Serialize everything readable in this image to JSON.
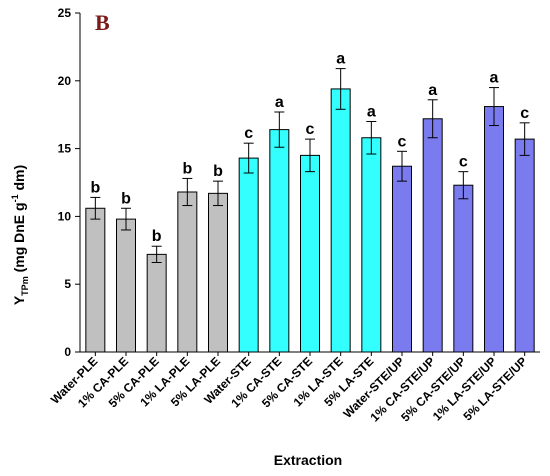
{
  "panel_label": "B",
  "chart_data": {
    "type": "bar",
    "xlabel": "Extraction",
    "ylabel_main": "Y",
    "ylabel_sub": "TPm",
    "ylabel_rest": " (mg DnE g",
    "ylabel_sup": "-1",
    "ylabel_end": " dm)",
    "ylim": [
      0,
      25
    ],
    "yticks": [
      0,
      5,
      10,
      15,
      20,
      25
    ],
    "grid": false,
    "categories": [
      "Water-PLE",
      "1% CA-PLE",
      "5% CA-PLE",
      "1% LA-PLE",
      "5% LA-PLE",
      "Water-STE",
      "1% CA-STE",
      "5% CA-STE",
      "1% LA-STE",
      "5% LA-STE",
      "Water-STE/UP",
      "1% CA-STE/UP",
      "5% CA-STE/UP",
      "1% LA-STE/UP",
      "5% LA-STE/UP"
    ],
    "values": [
      10.6,
      9.8,
      7.2,
      11.8,
      11.7,
      14.3,
      16.4,
      14.5,
      19.4,
      15.8,
      13.7,
      17.2,
      12.3,
      18.1,
      15.7
    ],
    "errors": [
      0.8,
      0.8,
      0.6,
      1.0,
      0.9,
      1.1,
      1.3,
      1.2,
      1.5,
      1.2,
      1.1,
      1.4,
      1.0,
      1.4,
      1.2
    ],
    "significance": [
      "b",
      "b",
      "b",
      "b",
      "b",
      "c",
      "a",
      "c",
      "a",
      "a",
      "c",
      "a",
      "c",
      "a",
      "c"
    ],
    "bar_colors": [
      "#c0c0c0",
      "#c0c0c0",
      "#c0c0c0",
      "#c0c0c0",
      "#c0c0c0",
      "#33ffff",
      "#33ffff",
      "#33ffff",
      "#33ffff",
      "#33ffff",
      "#7b7bf0",
      "#7b7bf0",
      "#7b7bf0",
      "#7b7bf0",
      "#7b7bf0"
    ]
  }
}
